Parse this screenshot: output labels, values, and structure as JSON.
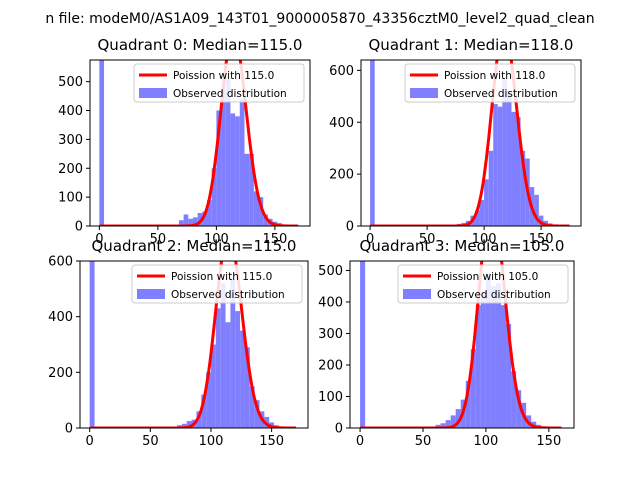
{
  "figure": {
    "suptitle": "n file: modeM0/AS1A09_143T01_9000005870_43356cztM0_level2_quad_clean"
  },
  "chart_data": [
    {
      "type": "bar",
      "title": "Quadrant 0: Median=115.0",
      "xlim": [
        -8,
        180
      ],
      "ylim": [
        0,
        575
      ],
      "xticks": [
        0,
        50,
        100,
        150
      ],
      "yticks": [
        0,
        100,
        200,
        300,
        400,
        500
      ],
      "bin_width": 4,
      "bins_start": [
        0,
        4,
        8,
        12,
        16,
        20,
        24,
        28,
        32,
        36,
        40,
        44,
        48,
        52,
        56,
        60,
        64,
        68,
        72,
        76,
        80,
        84,
        88,
        92,
        96,
        100,
        104,
        108,
        112,
        116,
        120,
        124,
        128,
        132,
        136,
        140,
        144,
        148,
        152,
        156,
        160,
        164,
        168
      ],
      "hist_values": [
        575,
        0,
        0,
        0,
        0,
        0,
        0,
        0,
        0,
        0,
        0,
        0,
        0,
        0,
        0,
        0,
        5,
        20,
        40,
        25,
        30,
        45,
        50,
        90,
        200,
        400,
        470,
        510,
        390,
        380,
        440,
        250,
        250,
        120,
        100,
        40,
        25,
        15,
        10,
        5,
        0,
        0,
        0
      ],
      "poisson_mean": 115.0,
      "curve_x_range": [
        0,
        170
      ],
      "legend": [
        "Poission with 115.0",
        "Observed distribution"
      ],
      "legend_position": "top-right",
      "grid": false
    },
    {
      "type": "bar",
      "title": "Quadrant 1: Median=118.0",
      "xlim": [
        -8,
        185
      ],
      "ylim": [
        0,
        640
      ],
      "xticks": [
        0,
        50,
        100,
        150
      ],
      "yticks": [
        0,
        200,
        400,
        600
      ],
      "bin_width": 4,
      "bins_start": [
        0,
        4,
        8,
        12,
        16,
        20,
        24,
        28,
        32,
        36,
        40,
        44,
        48,
        52,
        56,
        60,
        64,
        68,
        72,
        76,
        80,
        84,
        88,
        92,
        96,
        100,
        104,
        108,
        112,
        116,
        120,
        124,
        128,
        132,
        136,
        140,
        144,
        148,
        152,
        156,
        160,
        164,
        168,
        172
      ],
      "hist_values": [
        640,
        0,
        0,
        0,
        0,
        0,
        0,
        0,
        0,
        0,
        0,
        0,
        0,
        0,
        0,
        0,
        0,
        0,
        5,
        8,
        12,
        20,
        40,
        60,
        100,
        180,
        290,
        470,
        460,
        570,
        520,
        440,
        420,
        290,
        260,
        150,
        120,
        40,
        20,
        10,
        5,
        0,
        0,
        0
      ],
      "poisson_mean": 118.0,
      "curve_x_range": [
        0,
        175
      ],
      "legend": [
        "Poission with 118.0",
        "Observed distribution"
      ],
      "legend_position": "top-right",
      "grid": false
    },
    {
      "type": "bar",
      "title": "Quadrant 2: Median=115.0",
      "xlim": [
        -8,
        180
      ],
      "ylim": [
        0,
        600
      ],
      "xticks": [
        0,
        50,
        100,
        150
      ],
      "yticks": [
        0,
        200,
        400,
        600
      ],
      "bin_width": 4,
      "bins_start": [
        0,
        4,
        8,
        12,
        16,
        20,
        24,
        28,
        32,
        36,
        40,
        44,
        48,
        52,
        56,
        60,
        64,
        68,
        72,
        76,
        80,
        84,
        88,
        92,
        96,
        100,
        104,
        108,
        112,
        116,
        120,
        124,
        128,
        132,
        136,
        140,
        144,
        148,
        152,
        156,
        160,
        164,
        168
      ],
      "hist_values": [
        600,
        0,
        0,
        0,
        0,
        0,
        0,
        0,
        0,
        0,
        0,
        0,
        0,
        0,
        0,
        0,
        0,
        0,
        10,
        15,
        25,
        30,
        60,
        120,
        200,
        300,
        430,
        520,
        380,
        540,
        420,
        350,
        290,
        150,
        100,
        60,
        40,
        20,
        10,
        5,
        0,
        0,
        0
      ],
      "poisson_mean": 115.0,
      "curve_x_range": [
        0,
        170
      ],
      "legend": [
        "Poission with 115.0",
        "Observed distribution"
      ],
      "legend_position": "top-right",
      "grid": false
    },
    {
      "type": "bar",
      "title": "Quadrant 3: Median=105.0",
      "xlim": [
        -8,
        170
      ],
      "ylim": [
        0,
        530
      ],
      "xticks": [
        0,
        50,
        100,
        150
      ],
      "yticks": [
        0,
        100,
        200,
        300,
        400,
        500
      ],
      "bin_width": 4,
      "bins_start": [
        0,
        4,
        8,
        12,
        16,
        20,
        24,
        28,
        32,
        36,
        40,
        44,
        48,
        52,
        56,
        60,
        64,
        68,
        72,
        76,
        80,
        84,
        88,
        92,
        96,
        100,
        104,
        108,
        112,
        116,
        120,
        124,
        128,
        132,
        136,
        140,
        144,
        148,
        152,
        156
      ],
      "hist_values": [
        530,
        0,
        0,
        0,
        0,
        0,
        0,
        0,
        0,
        0,
        0,
        0,
        0,
        0,
        5,
        10,
        15,
        25,
        40,
        60,
        90,
        150,
        250,
        390,
        430,
        490,
        450,
        460,
        390,
        330,
        180,
        120,
        80,
        40,
        20,
        10,
        5,
        0,
        0,
        0
      ],
      "poisson_mean": 105.0,
      "curve_x_range": [
        0,
        160
      ],
      "legend": [
        "Poission with 105.0",
        "Observed distribution"
      ],
      "legend_position": "top-right",
      "grid": false
    }
  ],
  "colors": {
    "hist_fill": "#7f7fff",
    "poisson_line": "#ff0000",
    "axes": "#000000",
    "background": "#ffffff"
  }
}
